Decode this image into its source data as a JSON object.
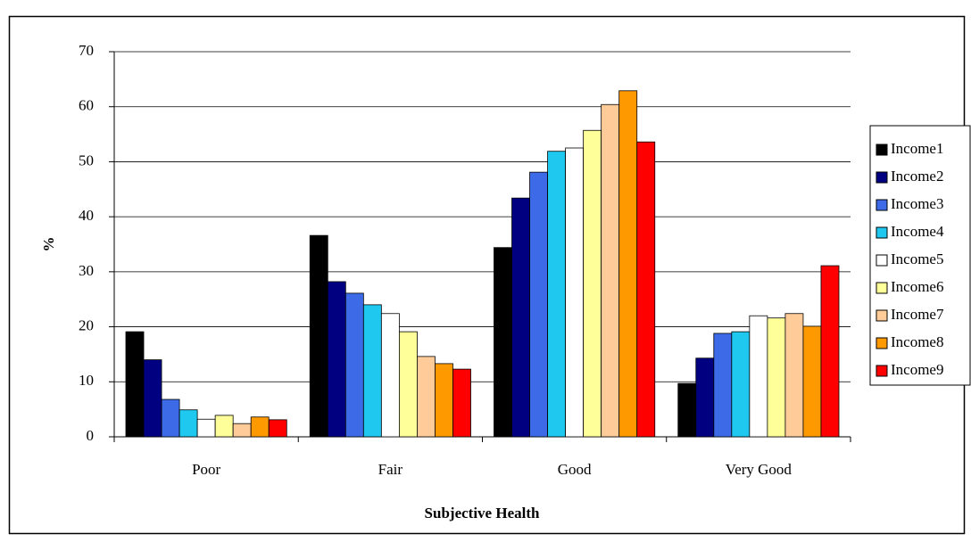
{
  "chart_data": {
    "type": "bar",
    "x_label": "Subjective Health",
    "y_label": "%",
    "categories": [
      "Poor",
      "Fair",
      "Good",
      "Very Good"
    ],
    "series": [
      {
        "name": "Income1",
        "color": "#000000",
        "values": [
          19.1,
          36.6,
          34.4,
          9.7
        ]
      },
      {
        "name": "Income2",
        "color": "#000080",
        "values": [
          14,
          28.2,
          43.4,
          14.3
        ]
      },
      {
        "name": "Income3",
        "color": "#3d6ae6",
        "values": [
          6.8,
          26.1,
          48.1,
          18.8
        ]
      },
      {
        "name": "Income4",
        "color": "#1ec8ef",
        "values": [
          4.9,
          24,
          51.9,
          19.1
        ]
      },
      {
        "name": "Income5",
        "color": "#ffffff",
        "values": [
          3.2,
          22.4,
          52.5,
          22
        ]
      },
      {
        "name": "Income6",
        "color": "#ffff99",
        "values": [
          3.9,
          19.1,
          55.7,
          21.6
        ]
      },
      {
        "name": "Income7",
        "color": "#ffcc99",
        "values": [
          2.4,
          14.6,
          60.4,
          22.4
        ]
      },
      {
        "name": "Income8",
        "color": "#ff9900",
        "values": [
          3.6,
          13.3,
          62.9,
          20.1
        ]
      },
      {
        "name": "Income9",
        "color": "#ff0000",
        "values": [
          3.1,
          12.3,
          53.6,
          31.1
        ]
      }
    ],
    "ylim": [
      0,
      70
    ],
    "yticks": [
      0,
      10,
      20,
      30,
      40,
      50,
      60,
      70
    ],
    "grid": true,
    "legend": "right"
  }
}
